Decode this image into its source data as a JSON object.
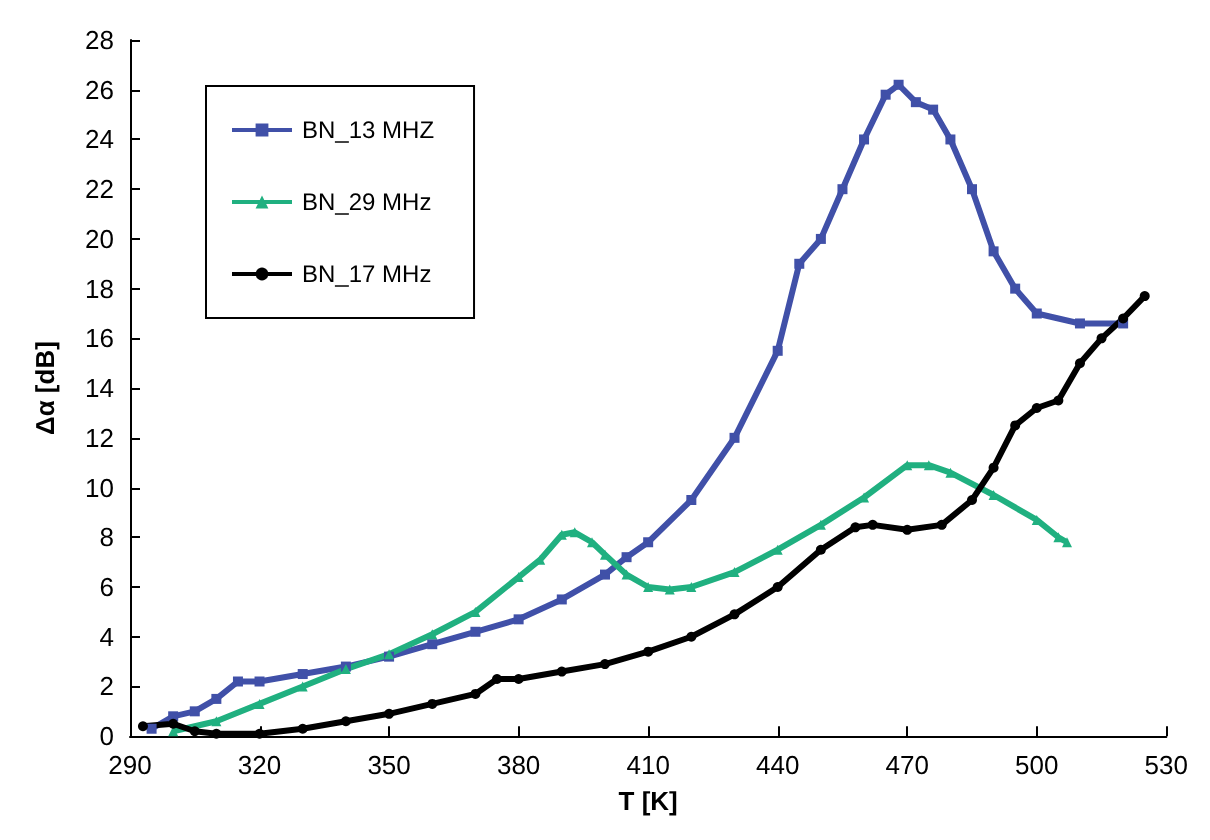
{
  "chart_data": {
    "type": "line",
    "xlabel": "T [K]",
    "ylabel": "Δα [dB]",
    "xlim": [
      290,
      530
    ],
    "xticks": [
      290,
      320,
      350,
      380,
      410,
      440,
      470,
      500,
      530
    ],
    "ylim": [
      0,
      28
    ],
    "yticks": [
      0,
      2,
      4,
      6,
      8,
      10,
      12,
      14,
      16,
      18,
      20,
      22,
      24,
      26,
      28
    ],
    "grid": false,
    "legend": "top left",
    "series": [
      {
        "name": "BN_13 MHZ",
        "color": "#4050a8",
        "marker": "square",
        "x": [
          295,
          300,
          305,
          310,
          315,
          320,
          330,
          340,
          350,
          360,
          370,
          380,
          390,
          400,
          405,
          410,
          420,
          430,
          440,
          445,
          450,
          455,
          460,
          465,
          468,
          472,
          476,
          480,
          485,
          490,
          495,
          500,
          510,
          520
        ],
        "values": [
          0.3,
          0.8,
          1,
          1.5,
          2.2,
          2.2,
          2.5,
          2.8,
          3.2,
          3.7,
          4.2,
          4.7,
          5.5,
          6.5,
          7.2,
          7.8,
          9.5,
          12,
          15.5,
          19,
          20,
          22,
          24,
          25.8,
          26.2,
          25.5,
          25.2,
          24,
          22,
          19.5,
          18,
          17,
          16.6,
          16.6
        ]
      },
      {
        "name": "BN_29 MHz",
        "color": "#20b080",
        "marker": "triangle",
        "x": [
          300,
          310,
          320,
          330,
          340,
          350,
          360,
          370,
          380,
          385,
          390,
          393,
          397,
          400,
          405,
          410,
          415,
          420,
          430,
          440,
          450,
          460,
          470,
          475,
          480,
          490,
          500,
          505,
          507
        ],
        "values": [
          0.2,
          0.6,
          1.3,
          2,
          2.7,
          3.3,
          4.1,
          5,
          6.4,
          7.1,
          8.1,
          8.2,
          7.8,
          7.3,
          6.5,
          6,
          5.9,
          6,
          6.6,
          7.5,
          8.5,
          9.6,
          10.9,
          10.9,
          10.6,
          9.7,
          8.7,
          8,
          7.8
        ]
      },
      {
        "name": "BN_17 MHz",
        "color": "#000000",
        "marker": "circle",
        "x": [
          293,
          300,
          305,
          310,
          320,
          330,
          340,
          350,
          360,
          370,
          375,
          380,
          390,
          400,
          410,
          420,
          430,
          440,
          450,
          458,
          462,
          470,
          478,
          485,
          490,
          495,
          500,
          505,
          510,
          515,
          520,
          525
        ],
        "values": [
          0.4,
          0.5,
          0.2,
          0.1,
          0.1,
          0.3,
          0.6,
          0.9,
          1.3,
          1.7,
          2.3,
          2.3,
          2.6,
          2.9,
          3.4,
          4,
          4.9,
          6,
          7.5,
          8.4,
          8.5,
          8.3,
          8.5,
          9.5,
          10.8,
          12.5,
          13.2,
          13.5,
          15,
          16,
          16.8,
          17.7
        ]
      }
    ]
  }
}
